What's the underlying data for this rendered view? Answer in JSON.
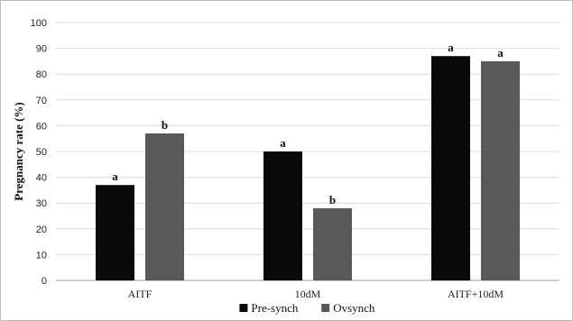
{
  "chart_data": {
    "type": "bar",
    "title": "",
    "ylabel": "Pregnancy rate (%)",
    "xlabel": "",
    "ylim": [
      0,
      100
    ],
    "yticks": [
      0,
      10,
      20,
      30,
      40,
      50,
      60,
      70,
      80,
      90,
      100
    ],
    "categories": [
      "AITF",
      "10dM",
      "AITF+10dM"
    ],
    "series": [
      {
        "name": "Pre-synch",
        "color": "#0a0a0a",
        "values": [
          37,
          50,
          87
        ],
        "sig": [
          "a",
          "a",
          "a"
        ]
      },
      {
        "name": "Ovsynch",
        "color": "#595959",
        "values": [
          57,
          28,
          85
        ],
        "sig": [
          "b",
          "b",
          "a"
        ]
      }
    ],
    "grid": true,
    "legend": "bottom-center"
  }
}
